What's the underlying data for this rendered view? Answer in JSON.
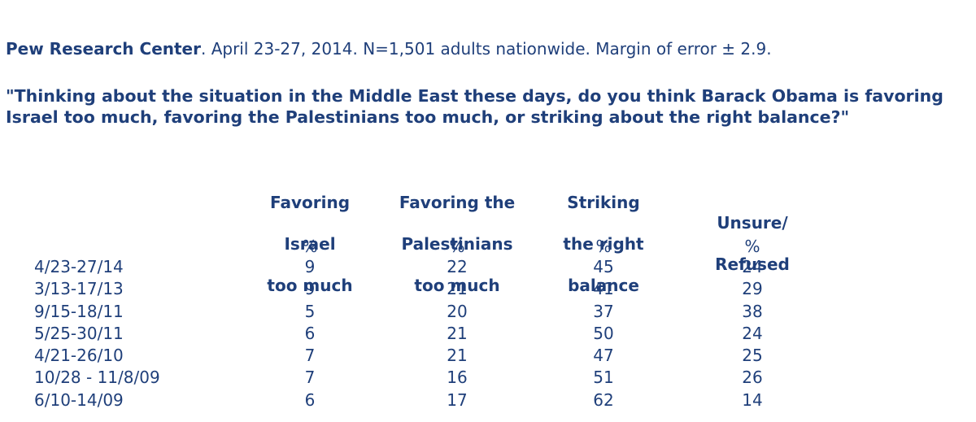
{
  "source": {
    "organization": "Pew Research Center",
    "details": ". April 23-27, 2014. N=1,501 adults nationwide. Margin of error ± 2.9."
  },
  "question": "\"Thinking about the situation in the Middle East these days, do you think Barack Obama is favoring Israel too much, favoring the Palestinians too much, or striking about the right balance?\"",
  "table": {
    "headers": [
      [
        "Favoring",
        "Israel",
        "too much"
      ],
      [
        "Favoring the",
        "Palestinians",
        "too much"
      ],
      [
        "Striking",
        "the right",
        "balance"
      ],
      [
        "Unsure/",
        "Refused"
      ]
    ],
    "units": [
      "%",
      "%",
      "%",
      "%"
    ],
    "rows": [
      {
        "date": "4/23-27/14",
        "values": [
          "9",
          "22",
          "45",
          "24"
        ]
      },
      {
        "date": "3/13-17/13",
        "values": [
          "9",
          "21",
          "41",
          "29"
        ]
      },
      {
        "date": "9/15-18/11",
        "values": [
          "5",
          "20",
          "37",
          "38"
        ]
      },
      {
        "date": "5/25-30/11",
        "values": [
          "6",
          "21",
          "50",
          "24"
        ]
      },
      {
        "date": "4/21-26/10",
        "values": [
          "7",
          "21",
          "47",
          "25"
        ]
      },
      {
        "date": "10/28 - 11/8/09",
        "values": [
          "7",
          "16",
          "51",
          "26"
        ]
      },
      {
        "date": "6/10-14/09",
        "values": [
          "6",
          "17",
          "62",
          "14"
        ]
      }
    ]
  },
  "colors": {
    "text": "#1f3f7a",
    "background": "#ffffff"
  }
}
